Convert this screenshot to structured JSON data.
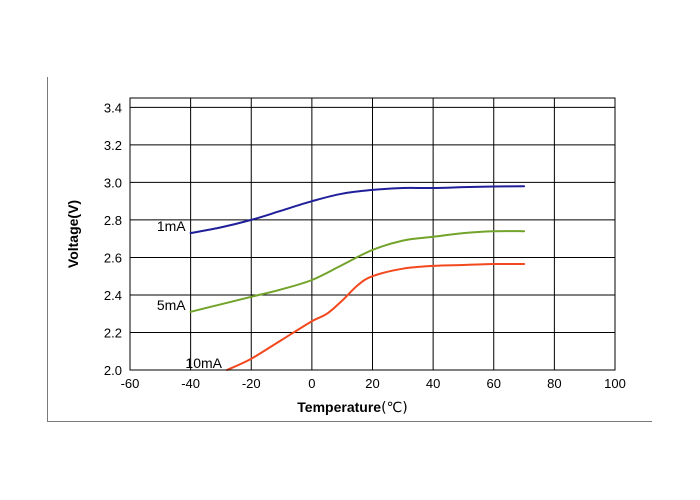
{
  "chart_data": {
    "type": "line",
    "title": "",
    "xlabel": "Temperature",
    "xlabel_unit": "(℃)",
    "ylabel": "Voltage(V)",
    "xlim": [
      -60,
      100
    ],
    "ylim": [
      2.0,
      3.45
    ],
    "x_ticks": [
      -60,
      -40,
      -20,
      0,
      20,
      40,
      60,
      80,
      100
    ],
    "x_tick_labels": [
      "-60",
      "-40",
      "-20",
      "0",
      "20",
      "40",
      "60",
      "80",
      "100"
    ],
    "y_ticks": [
      2.0,
      2.2,
      2.4,
      2.6,
      2.8,
      3.0,
      3.2,
      3.4
    ],
    "y_tick_labels": [
      "2.0",
      "2.2",
      "2.4",
      "2.6",
      "2.8",
      "3.0",
      "3.2",
      "3.4"
    ],
    "grid": true,
    "legend": "inline",
    "series": [
      {
        "name": "1mA",
        "color": "#1f1f9a",
        "x": [
          -40,
          -30,
          -20,
          -10,
          0,
          10,
          20,
          30,
          40,
          50,
          60,
          70
        ],
        "y": [
          2.73,
          2.76,
          2.8,
          2.85,
          2.9,
          2.94,
          2.96,
          2.97,
          2.97,
          2.975,
          2.978,
          2.98
        ]
      },
      {
        "name": "5mA",
        "color": "#72a32a",
        "x": [
          -40,
          -30,
          -20,
          -10,
          0,
          10,
          20,
          30,
          40,
          50,
          60,
          70
        ],
        "y": [
          2.31,
          2.35,
          2.39,
          2.43,
          2.48,
          2.56,
          2.64,
          2.69,
          2.71,
          2.73,
          2.74,
          2.74
        ]
      },
      {
        "name": "10mA",
        "color": "#f2481e",
        "x": [
          -28,
          -20,
          -10,
          0,
          5,
          10,
          15,
          20,
          30,
          40,
          50,
          60,
          70
        ],
        "y": [
          2.0,
          2.06,
          2.16,
          2.26,
          2.3,
          2.37,
          2.45,
          2.5,
          2.54,
          2.555,
          2.56,
          2.565,
          2.565
        ]
      }
    ]
  }
}
